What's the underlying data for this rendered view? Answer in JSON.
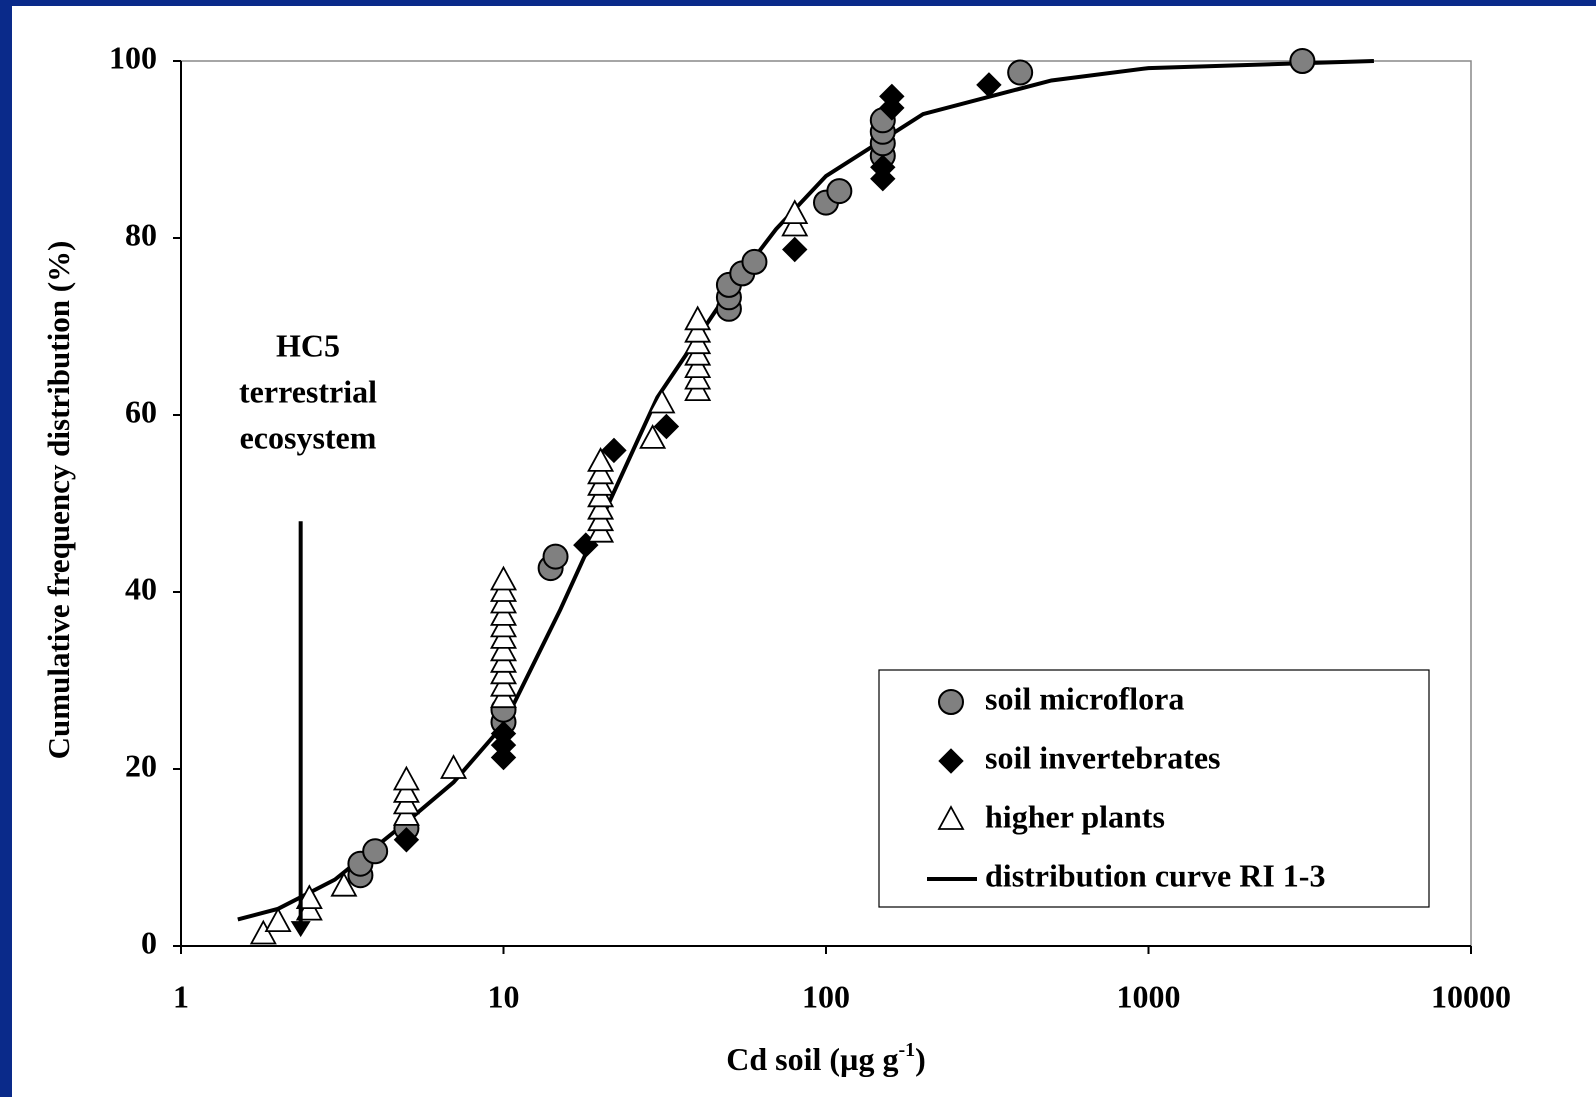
{
  "chart_data": {
    "type": "scatter",
    "xlabel_parts": [
      "Cd soil (µg g",
      "-1",
      ")"
    ],
    "ylabel": "Cumulative frequency distribution (%)",
    "xlim": [
      1,
      10000
    ],
    "xticks": [
      1,
      10,
      100,
      1000,
      10000
    ],
    "xscale": "log",
    "ylim": [
      0,
      100
    ],
    "yticks": [
      0,
      20,
      40,
      60,
      80,
      100
    ],
    "legend": "lower right",
    "annotation": [
      "HC5",
      "terrestrial",
      "ecosystem"
    ],
    "hc5_arrow": {
      "x": 2.35,
      "y": [
        48,
        1
      ]
    },
    "series": [
      {
        "name": "soil microflora",
        "marker": "circle",
        "color": "#808080",
        "x": [
          3.6,
          3.6,
          4,
          5,
          10,
          10,
          14,
          14.5,
          50,
          50,
          50,
          55,
          60,
          100,
          110,
          150,
          150,
          150,
          150,
          400,
          3000
        ],
        "values": [
          8,
          9.3,
          10.7,
          13.3,
          25.3,
          26.7,
          42.7,
          44,
          72,
          73.3,
          74.7,
          76,
          77.3,
          84,
          85.3,
          89.3,
          90.7,
          92,
          93.3,
          98.7,
          100
        ]
      },
      {
        "name": "soil invertebrates",
        "marker": "diamond",
        "color": "#000000",
        "x": [
          5,
          10,
          10,
          10,
          18,
          22,
          32,
          80,
          150,
          150,
          160,
          160,
          320
        ],
        "values": [
          12,
          21.3,
          22.7,
          24,
          45.3,
          56,
          58.7,
          78.7,
          86.7,
          88,
          94.7,
          96,
          97.3
        ]
      },
      {
        "name": "higher plants",
        "marker": "triangle",
        "color": "#ffffff",
        "x": [
          1.8,
          2,
          2.5,
          2.5,
          3.2,
          5,
          5,
          5,
          5,
          7,
          10,
          10,
          10,
          10,
          10,
          10,
          10,
          10,
          10,
          10,
          10,
          20,
          20,
          20,
          20,
          20,
          20,
          20,
          29,
          31,
          40,
          40,
          40,
          40,
          40,
          40,
          40,
          80,
          80
        ],
        "values": [
          1.3,
          2.7,
          4,
          5.3,
          6.7,
          14.7,
          16,
          17.3,
          18.7,
          20,
          28,
          29.3,
          30.7,
          32,
          33.3,
          34.7,
          36,
          37.3,
          38.7,
          40,
          41.3,
          46.7,
          48,
          49.3,
          50.7,
          52,
          53.3,
          54.7,
          57.3,
          61.3,
          62.7,
          64,
          65.3,
          66.7,
          68,
          69.3,
          70.7,
          81.3,
          82.7
        ]
      },
      {
        "name": "distribution curve RI 1-3",
        "marker": "line",
        "color": "#000000",
        "x": [
          1.5,
          2,
          3,
          5,
          7,
          10,
          15,
          20,
          30,
          50,
          70,
          100,
          200,
          500,
          1000,
          5000
        ],
        "values": [
          3,
          4.2,
          7.5,
          14,
          18.5,
          25,
          38,
          48,
          62,
          74,
          81,
          87,
          94,
          97.8,
          99.2,
          100
        ]
      }
    ]
  }
}
